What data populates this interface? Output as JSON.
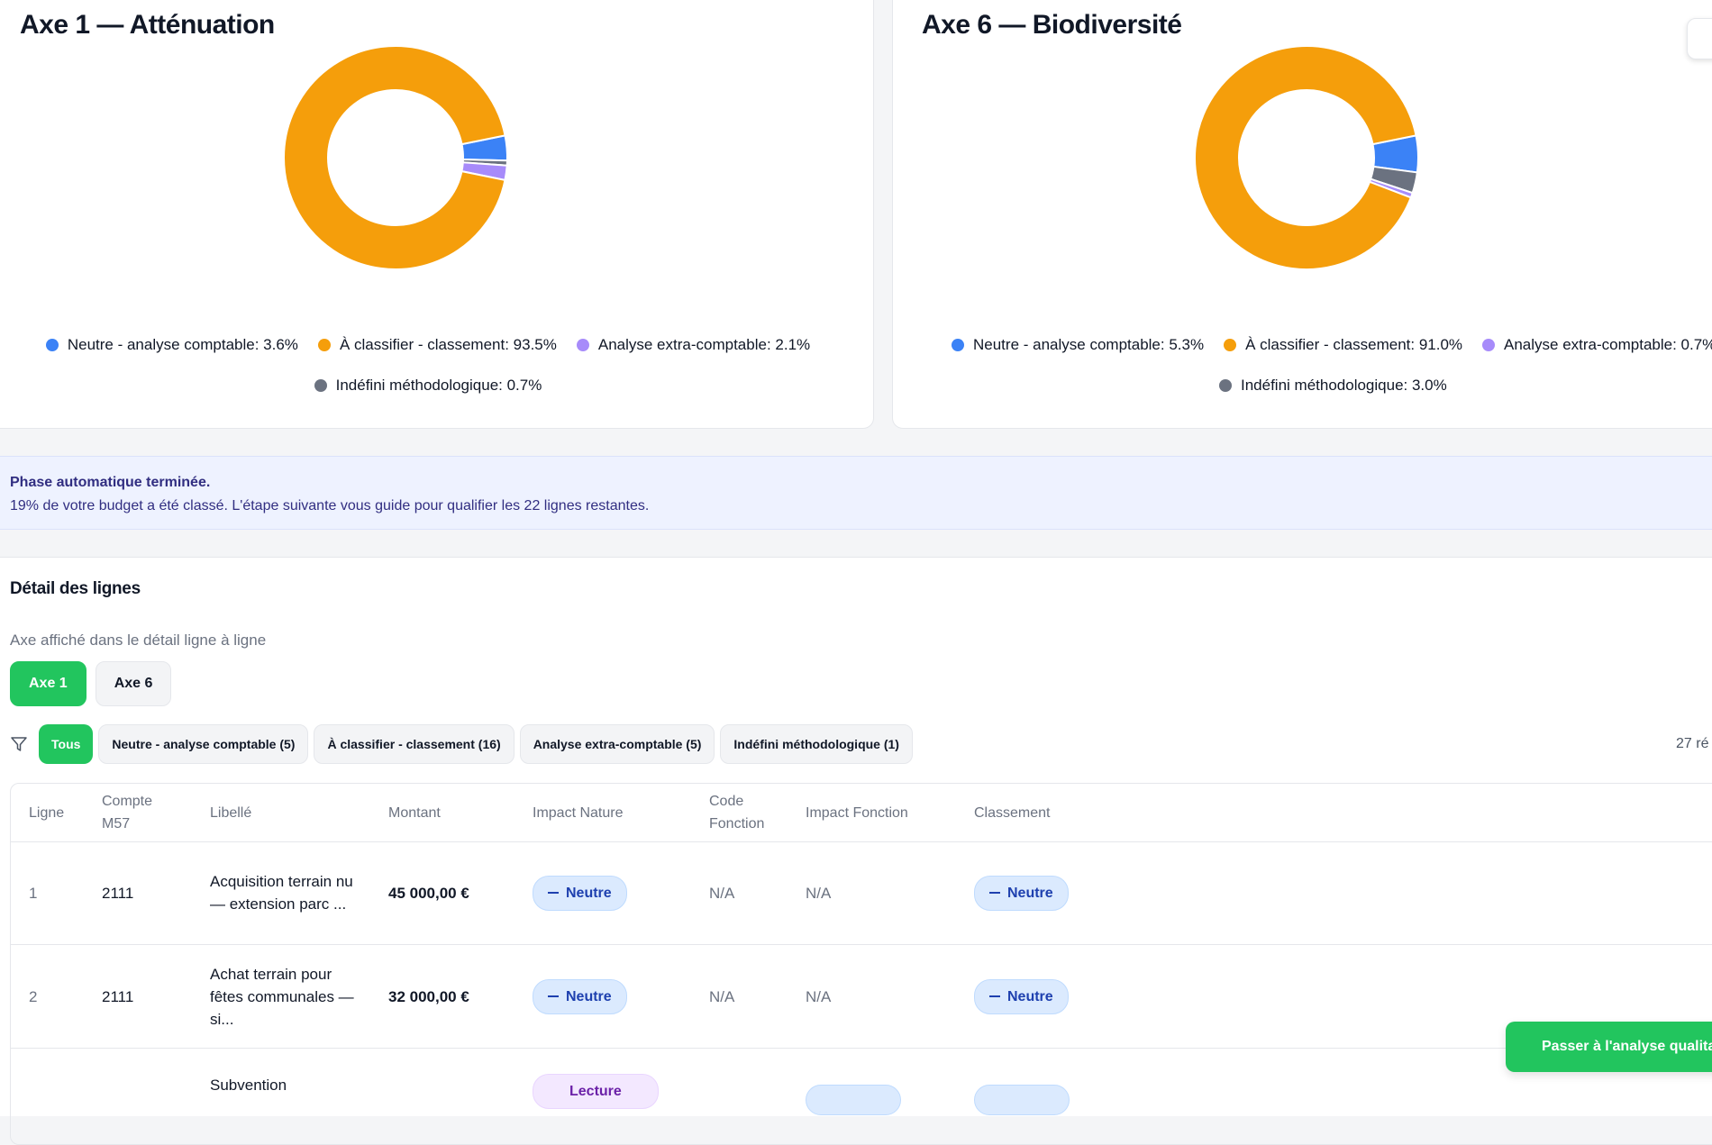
{
  "charts": {
    "axe1": {
      "title": "Axe 1 — Atténuation",
      "legend": [
        "Neutre - analyse comptable: 3.6%",
        "À classifier - classement: 93.5%",
        "Analyse extra-comptable: 2.1%",
        "Indéfini méthodologique: 0.7%"
      ]
    },
    "axe6": {
      "title": "Axe 6 — Biodiversité",
      "legend": [
        "Neutre - analyse comptable: 5.3%",
        "À classifier - classement: 91.0%",
        "Analyse extra-comptable: 0.7%",
        "Indéfini méthodologique: 3.0%"
      ]
    }
  },
  "chart_data": [
    {
      "type": "pie",
      "title": "Axe 1 — Atténuation",
      "categories": [
        "Neutre - analyse comptable",
        "À classifier - classement",
        "Analyse extra-comptable",
        "Indéfini méthodologique"
      ],
      "values": [
        3.6,
        93.5,
        2.1,
        0.7
      ],
      "colors": [
        "#3b82f6",
        "#f59e0b",
        "#a78bfa",
        "#6b7280"
      ],
      "legend": "bottom"
    },
    {
      "type": "pie",
      "title": "Axe 6 — Biodiversité",
      "categories": [
        "Neutre - analyse comptable",
        "À classifier - classement",
        "Analyse extra-comptable",
        "Indéfini méthodologique"
      ],
      "values": [
        5.3,
        91.0,
        0.7,
        3.0
      ],
      "colors": [
        "#3b82f6",
        "#f59e0b",
        "#a78bfa",
        "#6b7280"
      ],
      "legend": "bottom"
    }
  ],
  "banner": {
    "title": "Phase automatique terminée.",
    "text": "19% de votre budget a été classé. L'étape suivante vous guide pour qualifier les 22 lignes restantes."
  },
  "details": {
    "title": "Détail des lignes",
    "axis_caption": "Axe affiché dans le détail ligne à ligne",
    "axis_buttons": [
      "Axe 1",
      "Axe 6"
    ],
    "filters": [
      "Tous",
      "Neutre - analyse comptable (5)",
      "À classifier - classement (16)",
      "Analyse extra-comptable (5)",
      "Indéfini méthodologique (1)"
    ],
    "results_count": "27 ré"
  },
  "table": {
    "headers": [
      "Ligne",
      "Compte M57",
      "Libellé",
      "Montant",
      "Impact Nature",
      "Code Fonction",
      "Impact Fonction",
      "Classement"
    ],
    "rows": [
      {
        "ligne": "1",
        "compte": "2111",
        "libelle": "Acquisition terrain nu — extension parc ...",
        "montant": "45 000,00 €",
        "impact_nature": "Neutre",
        "code_fonction": "N/A",
        "impact_fonction": "N/A",
        "classement": "Neutre"
      },
      {
        "ligne": "2",
        "compte": "2111",
        "libelle": "Achat terrain pour fêtes communales — si...",
        "montant": "32 000,00 €",
        "impact_nature": "Neutre",
        "code_fonction": "N/A",
        "impact_fonction": "N/A",
        "classement": "Neutre"
      },
      {
        "ligne": "",
        "compte": "",
        "libelle": "Subvention",
        "montant": "",
        "impact_nature": "Lecture",
        "code_fonction": "",
        "impact_fonction": "",
        "classement": ""
      }
    ]
  },
  "cta": {
    "label": "Passer à l'analyse qualita"
  },
  "colors": {
    "accent": "#22c55e",
    "neutre": "#3b82f6",
    "a_classifier": "#f59e0b",
    "extra": "#a78bfa",
    "indefini": "#6b7280"
  }
}
